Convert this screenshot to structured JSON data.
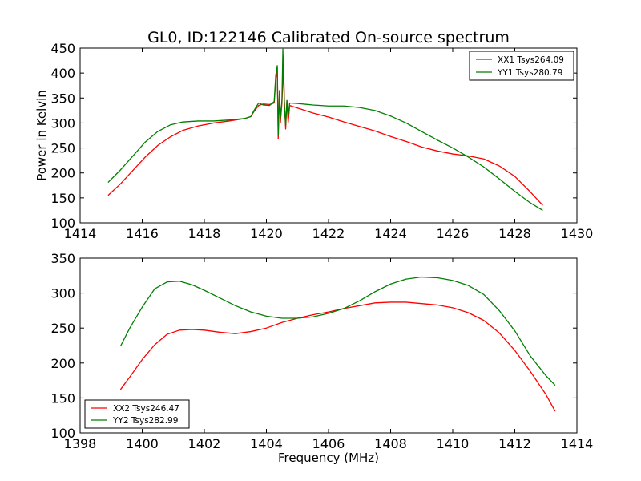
{
  "chart_data": [
    {
      "type": "line",
      "title": "GL0, ID:122146 Calibrated On-source spectrum",
      "xlabel": "",
      "ylabel": "Power in Kelvin",
      "xlim": [
        1414,
        1430
      ],
      "ylim": [
        100,
        450
      ],
      "xticks": [
        1414,
        1416,
        1418,
        1420,
        1422,
        1424,
        1426,
        1428,
        1430
      ],
      "yticks": [
        100,
        150,
        200,
        250,
        300,
        350,
        400,
        450
      ],
      "legend_position": "top-right",
      "series": [
        {
          "name": "XX1 Tsys264.09",
          "color": "#ff0000",
          "points": [
            [
              1414.9,
              155
            ],
            [
              1415.3,
              178
            ],
            [
              1415.7,
              205
            ],
            [
              1416.1,
              232
            ],
            [
              1416.5,
              255
            ],
            [
              1416.9,
              272
            ],
            [
              1417.3,
              285
            ],
            [
              1417.8,
              294
            ],
            [
              1418.3,
              300
            ],
            [
              1418.8,
              304
            ],
            [
              1419.3,
              309
            ],
            [
              1419.5,
              313
            ],
            [
              1419.6,
              323
            ],
            [
              1419.75,
              335
            ],
            [
              1419.9,
              338
            ],
            [
              1420.1,
              337
            ],
            [
              1420.25,
              340
            ],
            [
              1420.3,
              385
            ],
            [
              1420.35,
              410
            ],
            [
              1420.38,
              268
            ],
            [
              1420.42,
              360
            ],
            [
              1420.45,
              300
            ],
            [
              1420.5,
              340
            ],
            [
              1420.55,
              420
            ],
            [
              1420.58,
              345
            ],
            [
              1420.62,
              288
            ],
            [
              1420.66,
              345
            ],
            [
              1420.7,
              300
            ],
            [
              1420.75,
              335
            ],
            [
              1421.0,
              330
            ],
            [
              1421.5,
              320
            ],
            [
              1422.0,
              312
            ],
            [
              1422.5,
              302
            ],
            [
              1423.0,
              293
            ],
            [
              1423.5,
              284
            ],
            [
              1424.0,
              273
            ],
            [
              1424.5,
              263
            ],
            [
              1425.0,
              252
            ],
            [
              1425.5,
              244
            ],
            [
              1426.0,
              238
            ],
            [
              1426.5,
              234
            ],
            [
              1427.0,
              228
            ],
            [
              1427.5,
              214
            ],
            [
              1428.0,
              193
            ],
            [
              1428.5,
              162
            ],
            [
              1428.9,
              135
            ]
          ]
        },
        {
          "name": "YY1 Tsys280.79",
          "color": "#008000",
          "points": [
            [
              1414.9,
              181
            ],
            [
              1415.3,
              206
            ],
            [
              1415.7,
              234
            ],
            [
              1416.1,
              262
            ],
            [
              1416.5,
              283
            ],
            [
              1416.9,
              296
            ],
            [
              1417.3,
              302
            ],
            [
              1417.8,
              304
            ],
            [
              1418.3,
              304
            ],
            [
              1418.8,
              306
            ],
            [
              1419.3,
              309
            ],
            [
              1419.5,
              313
            ],
            [
              1419.6,
              325
            ],
            [
              1419.75,
              340
            ],
            [
              1419.9,
              336
            ],
            [
              1420.1,
              335
            ],
            [
              1420.25,
              343
            ],
            [
              1420.3,
              395
            ],
            [
              1420.35,
              415
            ],
            [
              1420.38,
              275
            ],
            [
              1420.42,
              365
            ],
            [
              1420.45,
              310
            ],
            [
              1420.5,
              345
            ],
            [
              1420.53,
              448
            ],
            [
              1420.58,
              335
            ],
            [
              1420.62,
              295
            ],
            [
              1420.66,
              345
            ],
            [
              1420.7,
              315
            ],
            [
              1420.75,
              340
            ],
            [
              1421.0,
              339
            ],
            [
              1421.5,
              336
            ],
            [
              1422.0,
              334
            ],
            [
              1422.5,
              334
            ],
            [
              1423.0,
              331
            ],
            [
              1423.5,
              325
            ],
            [
              1424.0,
              314
            ],
            [
              1424.5,
              300
            ],
            [
              1425.0,
              283
            ],
            [
              1425.5,
              266
            ],
            [
              1426.0,
              250
            ],
            [
              1426.5,
              232
            ],
            [
              1427.0,
              212
            ],
            [
              1427.5,
              188
            ],
            [
              1428.0,
              163
            ],
            [
              1428.5,
              140
            ],
            [
              1428.9,
              125
            ]
          ]
        }
      ]
    },
    {
      "type": "line",
      "title": "",
      "xlabel": "Frequency (MHz)",
      "ylabel": "",
      "xlim": [
        1398,
        1414
      ],
      "ylim": [
        100,
        350
      ],
      "xticks": [
        1398,
        1400,
        1402,
        1404,
        1406,
        1408,
        1410,
        1412,
        1414
      ],
      "yticks": [
        100,
        150,
        200,
        250,
        300,
        350
      ],
      "legend_position": "bottom-left",
      "series": [
        {
          "name": "XX2 Tsys246.47",
          "color": "#ff0000",
          "points": [
            [
              1399.3,
              162
            ],
            [
              1399.6,
              180
            ],
            [
              1400.0,
              205
            ],
            [
              1400.4,
              226
            ],
            [
              1400.8,
              241
            ],
            [
              1401.2,
              247
            ],
            [
              1401.6,
              248
            ],
            [
              1402.0,
              247
            ],
            [
              1402.5,
              244
            ],
            [
              1403.0,
              242
            ],
            [
              1403.5,
              245
            ],
            [
              1404.0,
              250
            ],
            [
              1404.5,
              258
            ],
            [
              1405.0,
              264
            ],
            [
              1405.5,
              269
            ],
            [
              1406.0,
              273
            ],
            [
              1406.5,
              278
            ],
            [
              1407.0,
              282
            ],
            [
              1407.5,
              286
            ],
            [
              1408.0,
              287
            ],
            [
              1408.5,
              287
            ],
            [
              1409.0,
              285
            ],
            [
              1409.5,
              283
            ],
            [
              1410.0,
              279
            ],
            [
              1410.5,
              272
            ],
            [
              1411.0,
              261
            ],
            [
              1411.5,
              243
            ],
            [
              1412.0,
              218
            ],
            [
              1412.5,
              188
            ],
            [
              1413.0,
              155
            ],
            [
              1413.3,
              131
            ]
          ]
        },
        {
          "name": "YY2 Tsys282.99",
          "color": "#008000",
          "points": [
            [
              1399.3,
              224
            ],
            [
              1399.6,
              250
            ],
            [
              1400.0,
              280
            ],
            [
              1400.4,
              306
            ],
            [
              1400.8,
              316
            ],
            [
              1401.2,
              317
            ],
            [
              1401.6,
              312
            ],
            [
              1402.0,
              304
            ],
            [
              1402.5,
              293
            ],
            [
              1403.0,
              282
            ],
            [
              1403.5,
              273
            ],
            [
              1404.0,
              267
            ],
            [
              1404.5,
              264
            ],
            [
              1405.0,
              264
            ],
            [
              1405.5,
              266
            ],
            [
              1406.0,
              271
            ],
            [
              1406.5,
              278
            ],
            [
              1407.0,
              289
            ],
            [
              1407.5,
              302
            ],
            [
              1408.0,
              313
            ],
            [
              1408.5,
              320
            ],
            [
              1409.0,
              323
            ],
            [
              1409.5,
              322
            ],
            [
              1410.0,
              318
            ],
            [
              1410.5,
              311
            ],
            [
              1411.0,
              298
            ],
            [
              1411.5,
              275
            ],
            [
              1412.0,
              246
            ],
            [
              1412.5,
              210
            ],
            [
              1413.0,
              182
            ],
            [
              1413.3,
              168
            ]
          ]
        }
      ]
    }
  ]
}
